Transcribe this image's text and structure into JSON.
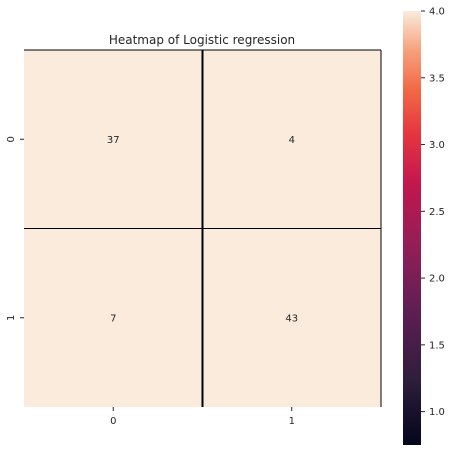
{
  "chart_data": {
    "type": "heatmap",
    "title": "Heatmap of Logistic regression",
    "xlabel": "",
    "ylabel": "",
    "x_categories": [
      "0",
      "1"
    ],
    "y_categories": [
      "0",
      "1"
    ],
    "values": [
      [
        37,
        4
      ],
      [
        7,
        43
      ]
    ],
    "annotations": [
      "37",
      "4",
      "7",
      "43"
    ],
    "color_scale": {
      "vmin": 0.75,
      "vmax": 4.0,
      "ticks": [
        "1.0",
        "1.5",
        "2.0",
        "2.5",
        "3.0",
        "3.5",
        "4.0"
      ],
      "tick_values": [
        1.0,
        1.5,
        2.0,
        2.5,
        3.0,
        3.5,
        4.0
      ],
      "colormap": "rocket",
      "cell_color": "#faebdd"
    },
    "grid": true,
    "legend": "colorbar-right"
  }
}
